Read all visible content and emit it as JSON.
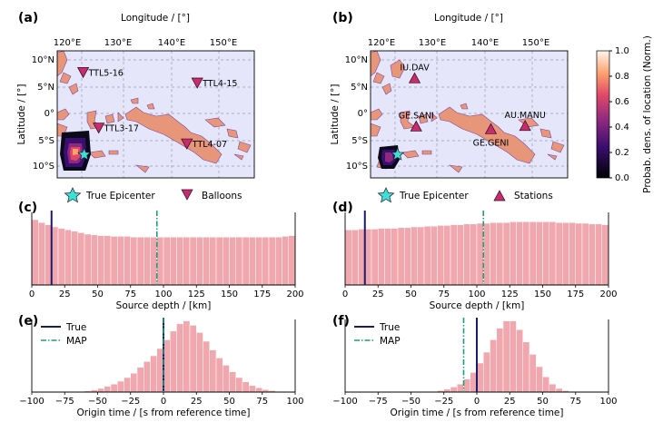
{
  "panel_labels": [
    "(a)",
    "(b)",
    "(c)",
    "(d)",
    "(e)",
    "(f)"
  ],
  "colors": {
    "ocean": "#e6e6fa",
    "land": "#e8967a",
    "coast": "#7a4aa0",
    "hist": "#f0a8ae",
    "true_line": "#1a1a6e",
    "map_line": "#1a9e7a",
    "epicenter": "#40e0d0",
    "marker": "#c72c6e"
  },
  "map_axes": {
    "xlabel": "Longitude / [°]",
    "ylabel": "Latitude / [°]",
    "lon_ticks": [
      "120°E",
      "130°E",
      "140°E",
      "150°E"
    ],
    "lat_ticks": [
      "10°N",
      "5°N",
      "0°",
      "5°S",
      "10°S"
    ]
  },
  "balloons": [
    {
      "name": "TTL5-16",
      "lon": 122,
      "lat": 8
    },
    {
      "name": "TTL4-15",
      "lon": 144,
      "lat": 6
    },
    {
      "name": "TTL3-17",
      "lon": 125,
      "lat": -2.5
    },
    {
      "name": "TTL4-07",
      "lon": 142,
      "lat": -5.5
    }
  ],
  "stations": [
    {
      "name": "IU.DAV",
      "lon": 125.5,
      "lat": 6.8
    },
    {
      "name": "GE.SANI",
      "lon": 125.8,
      "lat": -2.3
    },
    {
      "name": "GE.GENI",
      "lon": 140.2,
      "lat": -2.8
    },
    {
      "name": "AU.MANU",
      "lon": 146.8,
      "lat": -2.2
    }
  ],
  "epicenter": {
    "lon": 122.2,
    "lat": -7.6
  },
  "legend_a": {
    "epicenter_label": "True Epicenter",
    "marker_label": "Balloons"
  },
  "legend_b": {
    "epicenter_label": "True Epicenter",
    "marker_label": "Stations"
  },
  "colorbar": {
    "label": "Probab. dens. of location (Norm.)",
    "ticks": [
      "0.0",
      "0.2",
      "0.4",
      "0.6",
      "0.8",
      "1.0"
    ]
  },
  "chart_data": [
    {
      "panel": "(c)",
      "type": "bar",
      "xlabel": "Source depth / [km]",
      "xlim": [
        0,
        200
      ],
      "ylim": [
        0,
        1
      ],
      "xticks": [
        "0",
        "25",
        "50",
        "75",
        "100",
        "125",
        "150",
        "175",
        "200"
      ],
      "bin_width": 5,
      "values": [
        0.9,
        0.86,
        0.83,
        0.8,
        0.78,
        0.76,
        0.74,
        0.72,
        0.7,
        0.69,
        0.68,
        0.68,
        0.67,
        0.67,
        0.67,
        0.66,
        0.66,
        0.66,
        0.66,
        0.66,
        0.66,
        0.66,
        0.66,
        0.66,
        0.66,
        0.66,
        0.66,
        0.66,
        0.66,
        0.66,
        0.66,
        0.66,
        0.66,
        0.66,
        0.66,
        0.66,
        0.66,
        0.66,
        0.67,
        0.68
      ],
      "true": 15,
      "map": 95
    },
    {
      "panel": "(d)",
      "type": "bar",
      "xlabel": "Source depth / [km]",
      "xlim": [
        0,
        200
      ],
      "ylim": [
        0,
        1
      ],
      "xticks": [
        "0",
        "25",
        "50",
        "75",
        "100",
        "125",
        "150",
        "175",
        "200"
      ],
      "bin_width": 5,
      "values": [
        0.76,
        0.76,
        0.77,
        0.77,
        0.77,
        0.78,
        0.78,
        0.78,
        0.79,
        0.79,
        0.8,
        0.8,
        0.81,
        0.81,
        0.82,
        0.82,
        0.83,
        0.83,
        0.84,
        0.84,
        0.85,
        0.85,
        0.86,
        0.86,
        0.86,
        0.87,
        0.87,
        0.87,
        0.87,
        0.87,
        0.87,
        0.87,
        0.86,
        0.86,
        0.86,
        0.85,
        0.85,
        0.84,
        0.84,
        0.83
      ],
      "true": 15,
      "map": 105
    },
    {
      "panel": "(e)",
      "type": "bar",
      "xlabel": "Origin time / [s from reference time]",
      "xlim": [
        -100,
        100
      ],
      "ylim": [
        0,
        1
      ],
      "xticks": [
        "−100",
        "−75",
        "−50",
        "−25",
        "0",
        "25",
        "50",
        "75",
        "100"
      ],
      "bin_width": 5,
      "values": [
        0,
        0,
        0,
        0,
        0,
        0,
        0,
        0,
        0.015,
        0.03,
        0.05,
        0.08,
        0.11,
        0.15,
        0.2,
        0.26,
        0.34,
        0.42,
        0.5,
        0.6,
        0.72,
        0.84,
        0.94,
        0.98,
        0.92,
        0.82,
        0.7,
        0.58,
        0.47,
        0.37,
        0.28,
        0.2,
        0.14,
        0.09,
        0.06,
        0.035,
        0.02,
        0.01,
        0.005,
        0.005
      ],
      "legend": [
        "True",
        "MAP"
      ],
      "true": 0,
      "map": 0
    },
    {
      "panel": "(f)",
      "type": "bar",
      "xlabel": "Origin time / [s from reference time]",
      "xlim": [
        -100,
        100
      ],
      "ylim": [
        0,
        1
      ],
      "xticks": [
        "−100",
        "−75",
        "−50",
        "−25",
        "0",
        "25",
        "50",
        "75",
        "100"
      ],
      "bin_width": 5,
      "values": [
        0,
        0,
        0,
        0,
        0,
        0,
        0,
        0,
        0,
        0,
        0,
        0,
        0,
        0,
        0.02,
        0.04,
        0.07,
        0.11,
        0.18,
        0.27,
        0.4,
        0.55,
        0.72,
        0.88,
        0.98,
        0.98,
        0.86,
        0.69,
        0.52,
        0.35,
        0.21,
        0.11,
        0.05,
        0.02,
        0.01,
        0,
        0,
        0,
        0,
        0
      ],
      "legend": [
        "True",
        "MAP"
      ],
      "true": 0,
      "map": -10
    }
  ]
}
